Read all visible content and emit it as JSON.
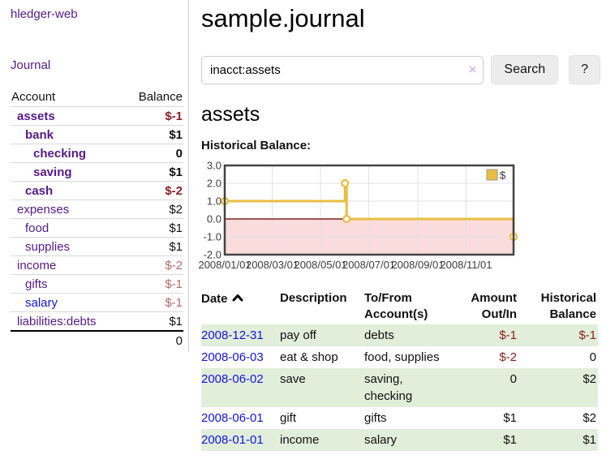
{
  "colors": {
    "link_purple": "#551a8b",
    "link_blue": "#1414e0",
    "negative_strong": "#8d1f1f",
    "negative_dim": "#b56a6a",
    "row_stripe_green": "#e1eed9",
    "chart_series_yellow": "#e9bd41",
    "chart_below_zero_pink": "#fbdcdc",
    "chart_zero_line_red": "#7d1f1f",
    "chart_border_gray": "#434343",
    "chart_grid_gray": "#e2e2e2",
    "tick_label_gray": "#3c3c3c"
  },
  "topbar": {
    "brand": "hledger-web"
  },
  "nav": {
    "journal": "Journal"
  },
  "sidebar": {
    "account_header": "Account",
    "balance_header": "Balance",
    "rows": [
      {
        "name": "assets",
        "balance": "$-1",
        "indent": 1,
        "bold": true,
        "bal_class": "neg",
        "name_class": ""
      },
      {
        "name": "bank",
        "balance": "$1",
        "indent": 2,
        "bold": true,
        "bal_class": "",
        "name_class": ""
      },
      {
        "name": "checking",
        "balance": "0",
        "indent": 3,
        "bold": true,
        "bal_class": "",
        "name_class": ""
      },
      {
        "name": "saving",
        "balance": "$1",
        "indent": 3,
        "bold": true,
        "bal_class": "",
        "name_class": ""
      },
      {
        "name": "cash",
        "balance": "$-2",
        "indent": 2,
        "bold": true,
        "bal_class": "neg",
        "name_class": ""
      },
      {
        "name": "expenses",
        "balance": "$2",
        "indent": 1,
        "bold": false,
        "bal_class": "",
        "name_class": ""
      },
      {
        "name": "food",
        "balance": "$1",
        "indent": 2,
        "bold": false,
        "bal_class": "",
        "name_class": ""
      },
      {
        "name": "supplies",
        "balance": "$1",
        "indent": 2,
        "bold": false,
        "bal_class": "",
        "name_class": ""
      },
      {
        "name": "income",
        "balance": "$-2",
        "indent": 1,
        "bold": false,
        "bal_class": "dim",
        "name_class": ""
      },
      {
        "name": "gifts",
        "balance": "$-1",
        "indent": 2,
        "bold": false,
        "bal_class": "dim",
        "name_class": ""
      },
      {
        "name": "salary",
        "balance": "$-1",
        "indent": 2,
        "bold": false,
        "bal_class": "dim",
        "name_class": "blue"
      },
      {
        "name": "liabilities:debts",
        "balance": "$1",
        "indent": 1,
        "bold": false,
        "bal_class": "",
        "name_class": ""
      }
    ],
    "total": "0"
  },
  "main": {
    "title": "sample.journal",
    "search": {
      "value": "inacct:assets",
      "clear_icon": "×",
      "search_button": "Search",
      "help_button": "?"
    },
    "account_title": "assets",
    "chart_heading": "Historical Balance:"
  },
  "chart_data": {
    "type": "line",
    "step": true,
    "title": "Historical Balance",
    "legend": [
      {
        "label": "$",
        "color": "#e9bd41"
      }
    ],
    "legend_position": "top-right",
    "grid": true,
    "xlim": [
      "2008-01-01",
      "2008-12-31"
    ],
    "ylim": [
      -2,
      3
    ],
    "y_ticks": [
      {
        "label": "3.0",
        "value": 3
      },
      {
        "label": "2.0",
        "value": 2
      },
      {
        "label": "1.0",
        "value": 1
      },
      {
        "label": "0.0",
        "value": 0
      },
      {
        "label": "-1.0",
        "value": -1
      },
      {
        "label": "-2.0",
        "value": -2
      }
    ],
    "x_ticks": [
      {
        "label": "2008/01/01",
        "date": "2008-01-01"
      },
      {
        "label": "2008/03/01",
        "date": "2008-03-01"
      },
      {
        "label": "2008/05/01",
        "date": "2008-05-01"
      },
      {
        "label": "2008/07/01",
        "date": "2008-07-01"
      },
      {
        "label": "2008/09/01",
        "date": "2008-09-01"
      },
      {
        "label": "2008/11/01",
        "date": "2008-11-01"
      }
    ],
    "points": [
      {
        "date": "2008-01-01",
        "value": 1
      },
      {
        "date": "2008-06-01",
        "value": 2
      },
      {
        "date": "2008-06-03",
        "value": 0
      },
      {
        "date": "2008-12-31",
        "value": -1
      }
    ],
    "below_zero_shaded": true
  },
  "register": {
    "headers": {
      "date": "Date",
      "sort_dir": "asc",
      "description": "Description",
      "accounts": "To/From Account(s)",
      "amount": "Amount Out/In",
      "balance": "Historical Balance"
    },
    "rows": [
      {
        "date": "2008-12-31",
        "description": "pay off",
        "accounts": "debts",
        "amount": "$-1",
        "balance": "$-1",
        "amount_neg": true,
        "balance_neg": true,
        "shaded": true
      },
      {
        "date": "2008-06-03",
        "description": "eat & shop",
        "accounts": "food, supplies",
        "amount": "$-2",
        "balance": "0",
        "amount_neg": true,
        "balance_neg": false,
        "shaded": false
      },
      {
        "date": "2008-06-02",
        "description": "save",
        "accounts": "saving, checking",
        "amount": "0",
        "balance": "$2",
        "amount_neg": false,
        "balance_neg": false,
        "shaded": true
      },
      {
        "date": "2008-06-01",
        "description": "gift",
        "accounts": "gifts",
        "amount": "$1",
        "balance": "$2",
        "amount_neg": false,
        "balance_neg": false,
        "shaded": false
      },
      {
        "date": "2008-01-01",
        "description": "income",
        "accounts": "salary",
        "amount": "$1",
        "balance": "$1",
        "amount_neg": false,
        "balance_neg": false,
        "shaded": true
      }
    ]
  }
}
